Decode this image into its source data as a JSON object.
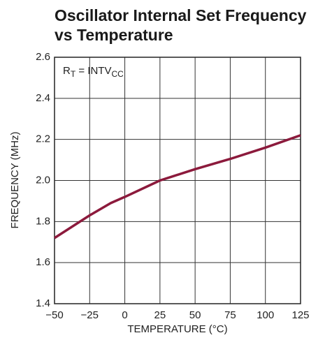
{
  "chart_data": {
    "type": "line",
    "title": [
      "Oscillator Internal Set Frequency",
      "vs Temperature"
    ],
    "annotation": [
      "R",
      "T",
      " = INTV",
      "CC"
    ],
    "x_label": "TEMPERATURE (°C)",
    "y_label": "FREQUENCY (MHz)",
    "x": [
      -50,
      -25,
      -10,
      0,
      25,
      50,
      75,
      100,
      125
    ],
    "series": [
      {
        "color": "#8c1a3c",
        "values": [
          1.72,
          1.83,
          1.89,
          1.92,
          2.0,
          2.055,
          2.105,
          2.16,
          2.22
        ]
      }
    ],
    "xlim": [
      -50,
      125
    ],
    "xticks": [
      {
        "value": -50,
        "label": "−50"
      },
      {
        "value": -25,
        "label": "−25"
      },
      0,
      25,
      50,
      75,
      100,
      125
    ],
    "ylim": [
      1.4,
      2.6
    ],
    "yticks": [
      1.4,
      1.6,
      1.8,
      {
        "value": 2.0,
        "label": "2.0"
      },
      2.2,
      2.4,
      2.6
    ],
    "grid": true
  }
}
